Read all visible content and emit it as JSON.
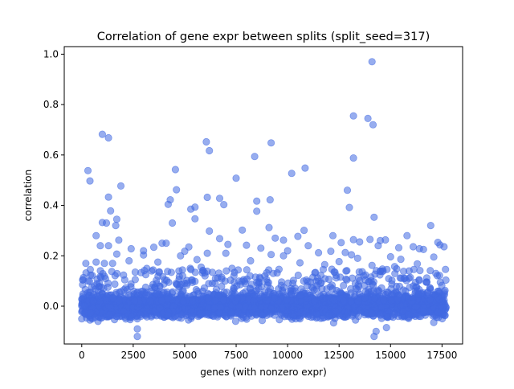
{
  "chart_data": {
    "type": "scatter",
    "title": "Correlation of gene expr between splits (split_seed=317)",
    "xlabel": "genes (with nonzero expr)",
    "ylabel": "correlation",
    "xlim": [
      -850,
      18500
    ],
    "ylim": [
      -0.15,
      1.03
    ],
    "x_ticks": [
      0,
      2500,
      5000,
      7500,
      10000,
      12500,
      15000,
      17500
    ],
    "x_tick_labels": [
      "0",
      "2500",
      "5000",
      "7500",
      "10000",
      "12500",
      "15000",
      "17500"
    ],
    "y_ticks": [
      0.0,
      0.2,
      0.4,
      0.6,
      0.8,
      1.0
    ],
    "y_tick_labels": [
      "0.0",
      "0.2",
      "0.4",
      "0.6",
      "0.8",
      "1.0"
    ],
    "grid": false,
    "marker_color": "#4169e1",
    "marker_alpha": 0.55,
    "n_points": 17700,
    "dense_band": {
      "x_range": [
        0,
        17700
      ],
      "y_center": 0.0,
      "y_spread": 0.02
    },
    "outliers": [
      [
        14100,
        0.97
      ],
      [
        13200,
        0.755
      ],
      [
        13900,
        0.745
      ],
      [
        14150,
        0.72
      ],
      [
        1000,
        0.682
      ],
      [
        1300,
        0.668
      ],
      [
        6050,
        0.652
      ],
      [
        9200,
        0.648
      ],
      [
        6200,
        0.617
      ],
      [
        8400,
        0.594
      ],
      [
        13200,
        0.588
      ],
      [
        4550,
        0.542
      ],
      [
        300,
        0.538
      ],
      [
        10850,
        0.548
      ],
      [
        10200,
        0.527
      ],
      [
        7500,
        0.508
      ],
      [
        400,
        0.497
      ],
      [
        1900,
        0.477
      ],
      [
        4600,
        0.462
      ],
      [
        12900,
        0.46
      ],
      [
        1300,
        0.433
      ],
      [
        6100,
        0.432
      ],
      [
        6700,
        0.428
      ],
      [
        9150,
        0.422
      ],
      [
        4300,
        0.422
      ],
      [
        8500,
        0.417
      ],
      [
        4200,
        0.404
      ],
      [
        6900,
        0.403
      ],
      [
        13000,
        0.392
      ],
      [
        5500,
        0.393
      ],
      [
        5300,
        0.385
      ],
      [
        8500,
        0.377
      ],
      [
        1400,
        0.378
      ],
      [
        14200,
        0.353
      ],
      [
        1700,
        0.345
      ],
      [
        5500,
        0.347
      ],
      [
        1000,
        0.332
      ],
      [
        1200,
        0.33
      ],
      [
        4400,
        0.33
      ],
      [
        16950,
        0.32
      ],
      [
        1650,
        0.32
      ],
      [
        9100,
        0.312
      ],
      [
        7800,
        0.302
      ],
      [
        10800,
        0.301
      ],
      [
        6200,
        0.298
      ],
      [
        9400,
        0.27
      ],
      [
        15800,
        0.28
      ],
      [
        10500,
        0.277
      ],
      [
        700,
        0.28
      ],
      [
        1800,
        0.262
      ],
      [
        6700,
        0.268
      ],
      [
        9800,
        0.262
      ],
      [
        14000,
        0.265
      ],
      [
        14750,
        0.263
      ],
      [
        14500,
        0.26
      ],
      [
        13200,
        0.264
      ],
      [
        12200,
        0.28
      ],
      [
        12600,
        0.252
      ],
      [
        13500,
        0.255
      ],
      [
        17300,
        0.253
      ],
      [
        900,
        0.24
      ],
      [
        17400,
        0.243
      ],
      [
        17600,
        0.236
      ],
      [
        8000,
        0.242
      ],
      [
        16100,
        0.236
      ],
      [
        3900,
        0.25
      ],
      [
        4100,
        0.25
      ],
      [
        1300,
        0.24
      ],
      [
        15400,
        0.232
      ],
      [
        5200,
        0.235
      ],
      [
        7100,
        0.245
      ],
      [
        3500,
        0.234
      ],
      [
        11000,
        0.24
      ],
      [
        14400,
        0.24
      ],
      [
        16400,
        0.228
      ],
      [
        16600,
        0.225
      ],
      [
        3000,
        0.22
      ],
      [
        8700,
        0.23
      ],
      [
        10000,
        0.22
      ],
      [
        12100,
        0.218
      ],
      [
        2400,
        0.228
      ],
      [
        5000,
        0.218
      ],
      [
        7000,
        0.21
      ],
      [
        9200,
        0.205
      ],
      [
        3000,
        0.203
      ],
      [
        11500,
        0.212
      ],
      [
        13100,
        0.204
      ],
      [
        15000,
        0.196
      ],
      [
        6100,
        0.21
      ],
      [
        12800,
        0.213
      ],
      [
        1700,
        0.207
      ],
      [
        4800,
        0.2
      ],
      [
        9800,
        0.2
      ],
      [
        15500,
        0.186
      ],
      [
        17100,
        0.195
      ],
      [
        13400,
        0.19
      ],
      [
        700,
        0.175
      ],
      [
        1100,
        0.17
      ],
      [
        1500,
        0.17
      ],
      [
        2300,
        0.18
      ],
      [
        3700,
        0.175
      ],
      [
        5600,
        0.185
      ],
      [
        8200,
        0.18
      ],
      [
        10600,
        0.172
      ],
      [
        12500,
        0.177
      ],
      [
        14100,
        0.162
      ],
      [
        16300,
        0.168
      ],
      [
        200,
        0.17
      ],
      [
        15200,
        0.157
      ],
      [
        5800,
        0.155
      ],
      [
        7300,
        0.15
      ],
      [
        11800,
        0.165
      ],
      [
        2600,
        0.135
      ],
      [
        3400,
        0.14
      ],
      [
        9300,
        0.13
      ],
      [
        15900,
        0.14
      ],
      [
        17200,
        0.13
      ],
      [
        4900,
        0.12
      ],
      [
        6800,
        0.115
      ],
      [
        13700,
        0.12
      ],
      [
        2700,
        -0.05
      ],
      [
        10400,
        -0.05
      ],
      [
        10600,
        -0.05
      ],
      [
        13300,
        -0.055
      ],
      [
        17100,
        -0.065
      ],
      [
        2700,
        -0.09
      ],
      [
        14300,
        -0.1
      ],
      [
        14800,
        -0.085
      ],
      [
        2700,
        -0.12
      ],
      [
        14200,
        -0.12
      ],
      [
        400,
        -0.055
      ],
      [
        6400,
        -0.04
      ],
      [
        1700,
        -0.04
      ],
      [
        4200,
        -0.035
      ],
      [
        8800,
        -0.035
      ],
      [
        12000,
        -0.038
      ],
      [
        16200,
        -0.04
      ],
      [
        11000,
        -0.04
      ]
    ]
  }
}
